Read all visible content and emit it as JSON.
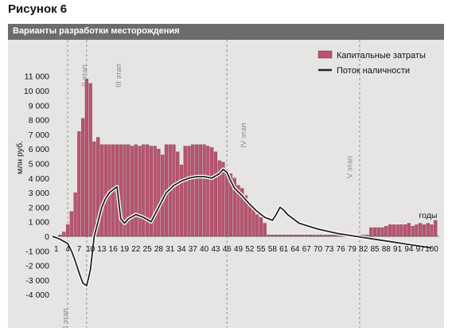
{
  "figure": {
    "title": "Рисунок 6",
    "subtitle": "Варианты разработки месторождения"
  },
  "colors": {
    "bars": "#b8546e",
    "bar_edge": "#7a2a40",
    "line": "#222222",
    "panel": "#e6e5e4",
    "header_bar": "#6d6b6c"
  },
  "chart_data": {
    "type": "bar",
    "ylabel": "млн руб.",
    "xlabel": "годы",
    "ylim": [
      -4000,
      11500
    ],
    "yticks": [
      -4000,
      -3000,
      -2000,
      -1000,
      0,
      1000,
      2000,
      3000,
      4000,
      5000,
      6000,
      7000,
      8000,
      9000,
      10000,
      11000
    ],
    "ytick_labels": [
      "-4 000",
      "-3 000",
      "-2 000",
      "-1 000",
      "0",
      "1 000",
      "2 000",
      "3 000",
      "4 000",
      "5 000",
      "6 000",
      "7 000",
      "8 000",
      "9 000",
      "10 000",
      "11 000"
    ],
    "xticks": [
      1,
      4,
      7,
      10,
      13,
      16,
      19,
      22,
      25,
      28,
      31,
      34,
      37,
      40,
      43,
      46,
      49,
      52,
      55,
      58,
      61,
      64,
      67,
      70,
      73,
      76,
      79,
      82,
      85,
      88,
      91,
      94,
      97,
      100
    ],
    "xlim": [
      0,
      102
    ],
    "legend": {
      "position": "top-right",
      "entries": [
        "Капитальные затраты",
        "Поток наличности"
      ]
    },
    "stages": [
      {
        "label": "I этап",
        "x": 4
      },
      {
        "label": "II этап",
        "x": 9
      },
      {
        "label": "III этап",
        "x": 18
      },
      {
        "label": "IV этап",
        "x": 51
      },
      {
        "label": "V этап",
        "x": 79
      }
    ],
    "stage_boundaries": [
      4,
      9,
      46,
      81
    ],
    "series": [
      {
        "name": "Капитальные затраты",
        "type": "bar",
        "x": [
          1,
          2,
          3,
          4,
          5,
          6,
          7,
          8,
          9,
          10,
          11,
          12,
          13,
          14,
          15,
          16,
          17,
          18,
          19,
          20,
          21,
          22,
          23,
          24,
          25,
          26,
          27,
          28,
          29,
          30,
          31,
          32,
          33,
          34,
          35,
          36,
          37,
          38,
          39,
          40,
          41,
          42,
          43,
          44,
          45,
          46,
          47,
          48,
          49,
          50,
          51,
          52,
          53,
          54,
          55,
          56,
          57,
          58,
          59,
          60,
          61,
          62,
          63,
          64,
          65,
          66,
          67,
          68,
          69,
          70,
          71,
          72,
          73,
          74,
          75,
          76,
          77,
          78,
          79,
          80,
          81,
          82,
          83,
          84,
          85,
          86,
          87,
          88,
          89,
          90,
          91,
          92,
          93,
          94,
          95,
          96,
          97,
          98,
          99,
          100,
          101
        ],
        "values": [
          0,
          100,
          300,
          800,
          1700,
          3000,
          7200,
          8100,
          10800,
          10500,
          6500,
          6800,
          6300,
          6300,
          6300,
          6300,
          6300,
          6300,
          6300,
          6300,
          6200,
          6300,
          6200,
          6300,
          6300,
          6200,
          6200,
          6000,
          5600,
          6300,
          6300,
          6300,
          5800,
          4900,
          6200,
          6200,
          6300,
          6300,
          6300,
          6300,
          6200,
          6100,
          5800,
          5200,
          5100,
          4500,
          4300,
          4000,
          3500,
          3300,
          2800,
          2300,
          2000,
          1500,
          1300,
          900,
          100,
          100,
          100,
          100,
          100,
          100,
          100,
          100,
          100,
          100,
          100,
          100,
          100,
          100,
          100,
          100,
          100,
          100,
          100,
          100,
          100,
          100,
          100,
          100,
          100,
          100,
          100,
          600,
          600,
          600,
          600,
          700,
          800,
          800,
          800,
          800,
          800,
          900,
          700,
          800,
          900,
          800,
          900,
          800,
          1100
        ]
      },
      {
        "name": "Поток наличности",
        "type": "line",
        "x": [
          0,
          2,
          4,
          5,
          6,
          7,
          8,
          9,
          10,
          11,
          12,
          13,
          14,
          15,
          16,
          17,
          18,
          19,
          20,
          22,
          24,
          26,
          28,
          30,
          32,
          34,
          36,
          38,
          40,
          42,
          44,
          45,
          46,
          47,
          48,
          50,
          52,
          54,
          56,
          58,
          59,
          60,
          61,
          62,
          65,
          70,
          75,
          80,
          85,
          90,
          95,
          100
        ],
        "values": [
          0,
          -200,
          -500,
          -1000,
          -1700,
          -2500,
          -3200,
          -3400,
          -2300,
          0,
          1000,
          2000,
          2600,
          3000,
          3200,
          3400,
          1200,
          900,
          1200,
          1500,
          1300,
          1000,
          2000,
          3000,
          3500,
          3800,
          4000,
          4100,
          4100,
          4000,
          4300,
          4600,
          4400,
          3800,
          3300,
          2800,
          2200,
          1700,
          1300,
          1100,
          1500,
          2000,
          1800,
          1500,
          900,
          500,
          200,
          0,
          -200,
          -400,
          -600,
          -800
        ]
      }
    ]
  }
}
